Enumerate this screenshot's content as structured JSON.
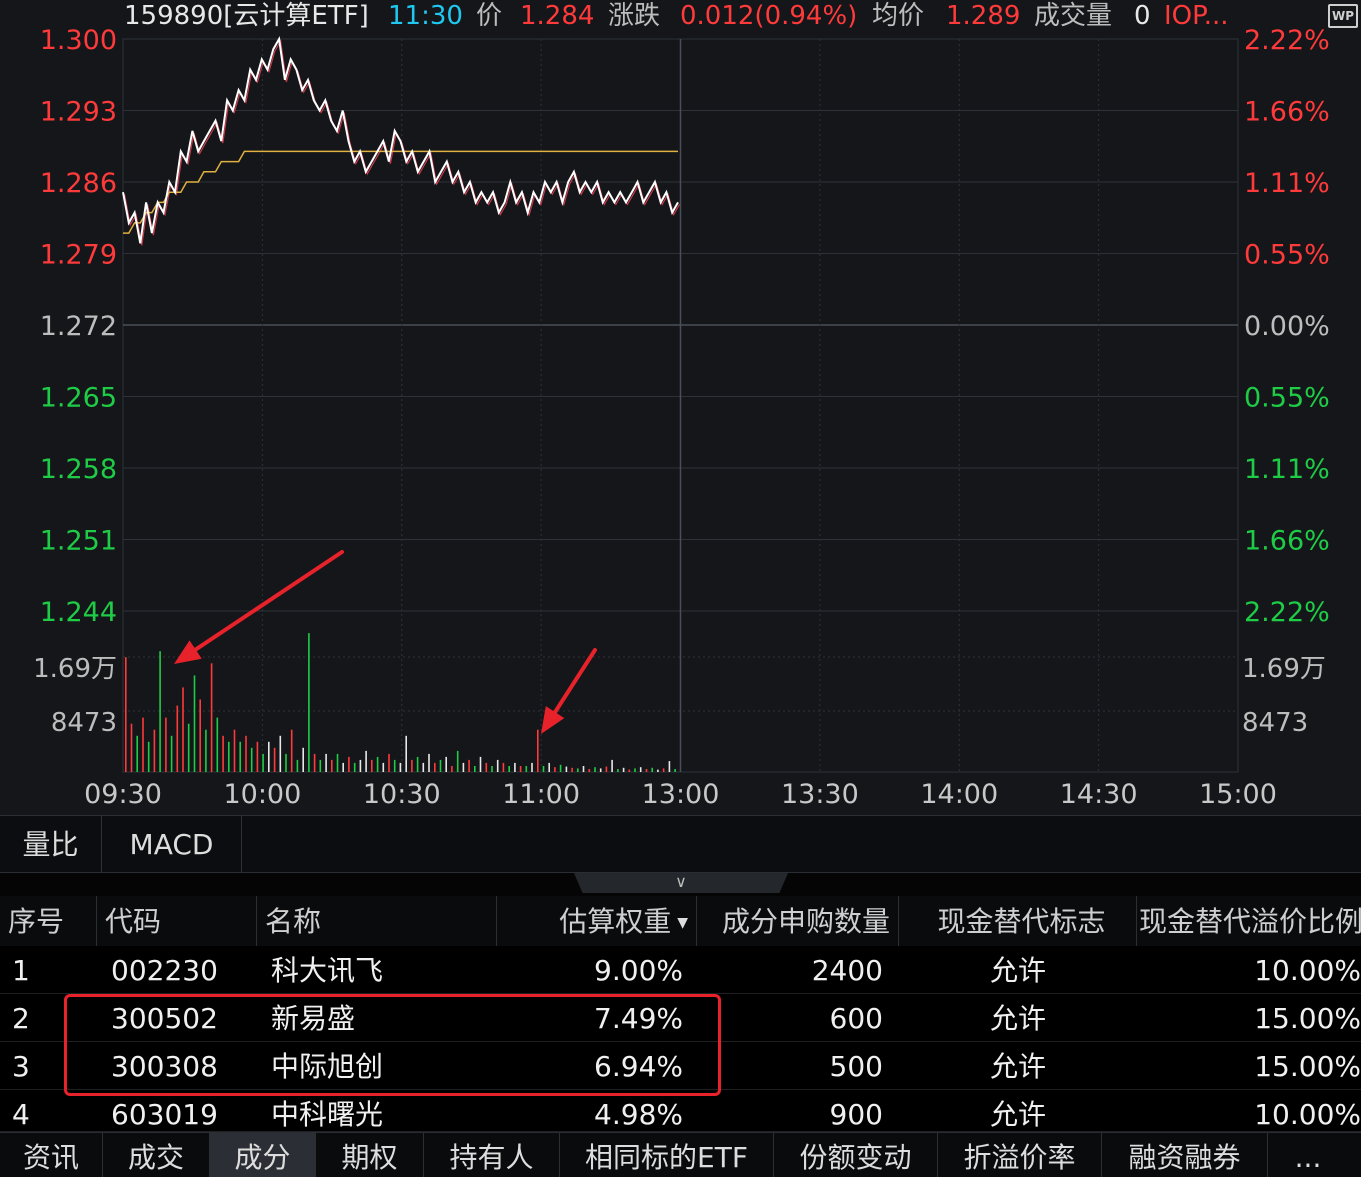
{
  "header": {
    "code_name": "159890[云计算ETF]",
    "time": "11:30",
    "price_label": "价",
    "price": "1.284",
    "change_label": "涨跌",
    "change": "0.012(0.94%)",
    "avg_label": "均价",
    "avg": "1.289",
    "volume_label": "成交量",
    "volume": "0",
    "iopv_label": "IOP..."
  },
  "wp_icon": "WP",
  "colors": {
    "up": "#ff3a3a",
    "down": "#1ecc46",
    "price_line": "#ffffff",
    "avg_line": "#e0b040",
    "grid": "#2e3238",
    "annotation": "#e8222a"
  },
  "chart_data": {
    "type": "line",
    "price_axis_left": [
      "1.300",
      "1.293",
      "1.286",
      "1.279",
      "1.272",
      "1.265",
      "1.258",
      "1.251",
      "1.244"
    ],
    "pct_axis_right": [
      "2.22%",
      "1.66%",
      "1.11%",
      "0.55%",
      "0.00%",
      "0.55%",
      "1.11%",
      "1.66%",
      "2.22%"
    ],
    "volume_axis": [
      "1.69万",
      "8473"
    ],
    "x_ticks": [
      "09:30",
      "10:00",
      "10:30",
      "11:00",
      "13:00",
      "13:30",
      "14:00",
      "14:30",
      "15:00"
    ],
    "ylim": [
      1.244,
      1.3
    ],
    "prev_close": 1.272,
    "price_series": [
      1.285,
      1.282,
      1.283,
      1.28,
      1.284,
      1.281,
      1.284,
      1.283,
      1.286,
      1.285,
      1.289,
      1.288,
      1.291,
      1.289,
      1.29,
      1.291,
      1.292,
      1.29,
      1.294,
      1.293,
      1.295,
      1.294,
      1.297,
      1.296,
      1.298,
      1.297,
      1.299,
      1.3,
      1.296,
      1.298,
      1.297,
      1.295,
      1.296,
      1.294,
      1.293,
      1.294,
      1.292,
      1.291,
      1.293,
      1.29,
      1.288,
      1.289,
      1.287,
      1.288,
      1.289,
      1.29,
      1.288,
      1.291,
      1.29,
      1.288,
      1.289,
      1.287,
      1.288,
      1.289,
      1.286,
      1.287,
      1.288,
      1.286,
      1.287,
      1.285,
      1.286,
      1.284,
      1.285,
      1.284,
      1.285,
      1.283,
      1.284,
      1.286,
      1.284,
      1.285,
      1.283,
      1.285,
      1.284,
      1.286,
      1.285,
      1.286,
      1.284,
      1.286,
      1.287,
      1.285,
      1.286,
      1.285,
      1.286,
      1.284,
      1.285,
      1.284,
      1.285,
      1.284,
      1.285,
      1.286,
      1.284,
      1.285,
      1.286,
      1.284,
      1.285,
      1.283,
      1.284
    ],
    "avg_series": [
      1.281,
      1.281,
      1.282,
      1.282,
      1.283,
      1.283,
      1.284,
      1.284,
      1.285,
      1.285,
      1.285,
      1.286,
      1.286,
      1.286,
      1.287,
      1.287,
      1.287,
      1.288,
      1.288,
      1.288,
      1.288,
      1.289,
      1.289,
      1.289,
      1.289,
      1.289,
      1.289,
      1.289,
      1.289,
      1.289,
      1.289,
      1.289,
      1.289,
      1.289,
      1.289,
      1.289,
      1.289,
      1.289,
      1.289,
      1.289,
      1.289,
      1.289,
      1.289,
      1.289,
      1.289,
      1.289,
      1.289,
      1.289,
      1.289,
      1.289,
      1.289,
      1.289,
      1.289,
      1.289,
      1.289,
      1.289,
      1.289,
      1.289,
      1.289,
      1.289,
      1.289,
      1.289,
      1.289,
      1.289,
      1.289,
      1.289,
      1.289,
      1.289,
      1.289,
      1.289,
      1.289,
      1.289,
      1.289,
      1.289,
      1.289,
      1.289,
      1.289,
      1.289,
      1.289,
      1.289,
      1.289,
      1.289,
      1.289,
      1.289,
      1.289,
      1.289,
      1.289,
      1.289,
      1.289,
      1.289,
      1.289,
      1.289,
      1.289,
      1.289,
      1.289,
      1.289,
      1.289
    ],
    "volume_max": 25000,
    "volume_series": [
      [
        19000,
        "r"
      ],
      [
        8000,
        "r"
      ],
      [
        6000,
        "g"
      ],
      [
        9000,
        "r"
      ],
      [
        5000,
        "g"
      ],
      [
        7000,
        "r"
      ],
      [
        20000,
        "g"
      ],
      [
        9000,
        "r"
      ],
      [
        6000,
        "g"
      ],
      [
        11000,
        "r"
      ],
      [
        14000,
        "r"
      ],
      [
        8000,
        "g"
      ],
      [
        16000,
        "g"
      ],
      [
        12000,
        "r"
      ],
      [
        7000,
        "g"
      ],
      [
        18000,
        "r"
      ],
      [
        9000,
        "g"
      ],
      [
        6000,
        "r"
      ],
      [
        5000,
        "g"
      ],
      [
        7000,
        "r"
      ],
      [
        5000,
        "g"
      ],
      [
        6000,
        "r"
      ],
      [
        4000,
        "g"
      ],
      [
        5000,
        "r"
      ],
      [
        3000,
        "g"
      ],
      [
        5000,
        "w"
      ],
      [
        4000,
        "r"
      ],
      [
        6000,
        "w"
      ],
      [
        3000,
        "g"
      ],
      [
        7000,
        "r"
      ],
      [
        2000,
        "g"
      ],
      [
        4000,
        "w"
      ],
      [
        23000,
        "g"
      ],
      [
        3000,
        "r"
      ],
      [
        2000,
        "g"
      ],
      [
        3000,
        "w"
      ],
      [
        2000,
        "r"
      ],
      [
        3000,
        "g"
      ],
      [
        1500,
        "w"
      ],
      [
        2500,
        "r"
      ],
      [
        1500,
        "g"
      ],
      [
        2000,
        "w"
      ],
      [
        3500,
        "w"
      ],
      [
        2000,
        "r"
      ],
      [
        2500,
        "g"
      ],
      [
        1500,
        "w"
      ],
      [
        3000,
        "r"
      ],
      [
        2000,
        "g"
      ],
      [
        1500,
        "w"
      ],
      [
        6000,
        "w"
      ],
      [
        2000,
        "r"
      ],
      [
        2500,
        "g"
      ],
      [
        1500,
        "w"
      ],
      [
        3000,
        "w"
      ],
      [
        1500,
        "r"
      ],
      [
        2000,
        "g"
      ],
      [
        2500,
        "w"
      ],
      [
        1000,
        "r"
      ],
      [
        3500,
        "g"
      ],
      [
        1500,
        "w"
      ],
      [
        2000,
        "r"
      ],
      [
        1000,
        "g"
      ],
      [
        2500,
        "w"
      ],
      [
        1500,
        "r"
      ],
      [
        1000,
        "g"
      ],
      [
        2000,
        "w"
      ],
      [
        1500,
        "r"
      ],
      [
        1000,
        "g"
      ],
      [
        1500,
        "w"
      ],
      [
        1000,
        "r"
      ],
      [
        1000,
        "g"
      ],
      [
        1500,
        "w"
      ],
      [
        7000,
        "r"
      ],
      [
        1000,
        "g"
      ],
      [
        1500,
        "w"
      ],
      [
        800,
        "r"
      ],
      [
        1200,
        "g"
      ],
      [
        900,
        "w"
      ],
      [
        700,
        "r"
      ],
      [
        600,
        "g"
      ],
      [
        1000,
        "w"
      ],
      [
        500,
        "r"
      ],
      [
        800,
        "g"
      ],
      [
        600,
        "w"
      ],
      [
        900,
        "r"
      ],
      [
        2000,
        "w"
      ],
      [
        500,
        "g"
      ],
      [
        700,
        "w"
      ],
      [
        400,
        "r"
      ],
      [
        600,
        "g"
      ],
      [
        800,
        "w"
      ],
      [
        500,
        "r"
      ],
      [
        700,
        "g"
      ],
      [
        400,
        "w"
      ],
      [
        600,
        "r"
      ],
      [
        1800,
        "w"
      ],
      [
        500,
        "g"
      ]
    ]
  },
  "indicator_tabs": [
    "量比",
    "MACD"
  ],
  "collapse_icon": "chevron-down",
  "table": {
    "headers": [
      "序号",
      "代码",
      "名称",
      "估算权重",
      "成分申购数量",
      "现金替代标志",
      "现金替代溢价比例"
    ],
    "rows": [
      {
        "no": "1",
        "code": "002230",
        "name": "科大讯飞",
        "weight": "9.00%",
        "qty": "2400",
        "flag": "允许",
        "premium": "10.00%"
      },
      {
        "no": "2",
        "code": "300502",
        "name": "新易盛",
        "weight": "7.49%",
        "qty": "600",
        "flag": "允许",
        "premium": "15.00%"
      },
      {
        "no": "3",
        "code": "300308",
        "name": "中际旭创",
        "weight": "6.94%",
        "qty": "500",
        "flag": "允许",
        "premium": "15.00%"
      },
      {
        "no": "4",
        "code": "603019",
        "name": "中科曙光",
        "weight": "4.98%",
        "qty": "900",
        "flag": "允许",
        "premium": "10.00%"
      }
    ]
  },
  "bottom_tabs": [
    "资讯",
    "成交",
    "成分",
    "期权",
    "持有人",
    "相同标的ETF",
    "份额变动",
    "折溢价率",
    "融资融券",
    "..."
  ],
  "active_bottom_tab": "成分"
}
